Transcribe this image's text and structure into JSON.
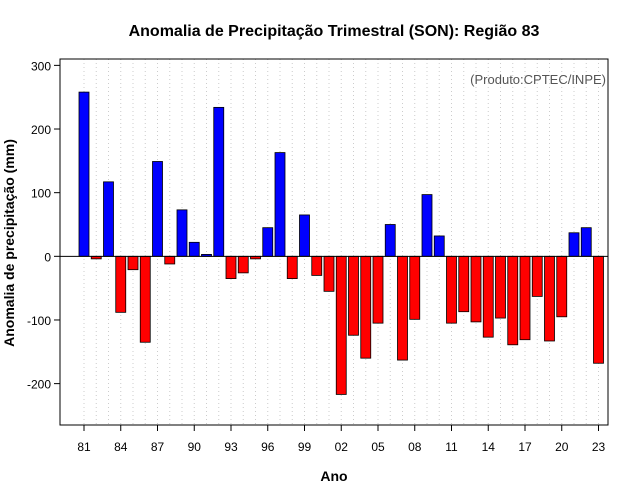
{
  "chart_data": {
    "type": "bar",
    "title": "Anomalia de Precipitação Trimestral (SON): Região 83",
    "xlabel": "Ano",
    "ylabel": "Anomalia de precipitação (mm)",
    "annotation": "(Produto:CPTEC/INPE)",
    "ylim": [
      -265,
      310
    ],
    "yticks": [
      -200,
      -100,
      0,
      100,
      200,
      300
    ],
    "grid": "vertical dotted lines",
    "colors": {
      "positive": "#0000ff",
      "negative": "#ff0000",
      "outline": "#000000",
      "grid": "#cccccc"
    },
    "categories": [
      "1981",
      "1982",
      "1983",
      "1984",
      "1985",
      "1986",
      "1987",
      "1988",
      "1989",
      "1990",
      "1991",
      "1992",
      "1993",
      "1994",
      "1995",
      "1996",
      "1997",
      "1998",
      "1999",
      "2000",
      "2001",
      "2002",
      "2003",
      "2004",
      "2005",
      "2006",
      "2007",
      "2008",
      "2009",
      "2010",
      "2011",
      "2012",
      "2013",
      "2014",
      "2015",
      "2016",
      "2017",
      "2018",
      "2019",
      "2020",
      "2021",
      "2022",
      "2023"
    ],
    "tick_labels": [
      {
        "index": 0,
        "label": "81"
      },
      {
        "index": 3,
        "label": "84"
      },
      {
        "index": 6,
        "label": "87"
      },
      {
        "index": 9,
        "label": "90"
      },
      {
        "index": 12,
        "label": "93"
      },
      {
        "index": 15,
        "label": "96"
      },
      {
        "index": 18,
        "label": "99"
      },
      {
        "index": 21,
        "label": "02"
      },
      {
        "index": 24,
        "label": "05"
      },
      {
        "index": 27,
        "label": "08"
      },
      {
        "index": 30,
        "label": "11"
      },
      {
        "index": 33,
        "label": "14"
      },
      {
        "index": 36,
        "label": "17"
      },
      {
        "index": 39,
        "label": "20"
      },
      {
        "index": 42,
        "label": "23"
      }
    ],
    "values": [
      258,
      -4,
      117,
      -88,
      -21,
      -135,
      149,
      -12,
      73,
      22,
      3,
      234,
      -35,
      -26,
      -4,
      45,
      163,
      -35,
      65,
      -30,
      -55,
      -217,
      -124,
      -160,
      -105,
      50,
      -163,
      -99,
      97,
      32,
      -105,
      -87,
      -103,
      -127,
      -97,
      -139,
      -131,
      -63,
      -133,
      -95,
      37,
      45,
      -168
    ]
  }
}
